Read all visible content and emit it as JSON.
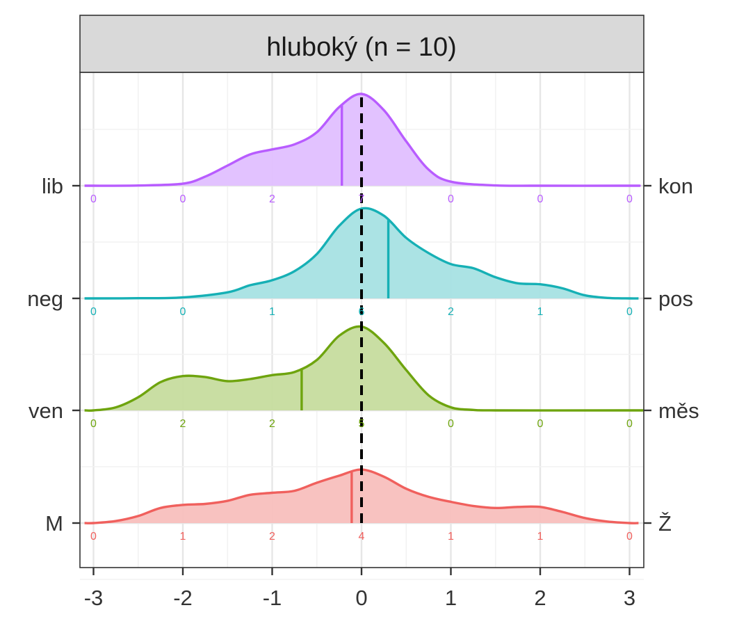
{
  "chart_data": {
    "type": "ridgeline",
    "title": "hluboký (n = 10)",
    "xlim": [
      -3,
      3
    ],
    "x_ticks": [
      "-3",
      "-2",
      "-1",
      "0",
      "1",
      "2",
      "3"
    ],
    "grid": true,
    "reference_line_x": 0,
    "series": [
      {
        "left_label": "lib",
        "right_label": "kon",
        "color": "#B85CFF",
        "fill": "#E0BFFF",
        "mean": -0.22,
        "counts": [
          0,
          0,
          2,
          7,
          0,
          0,
          0
        ],
        "density": [
          [
            -3,
            0
          ],
          [
            -2.5,
            0.002
          ],
          [
            -2,
            0.02
          ],
          [
            -1.75,
            0.09
          ],
          [
            -1.5,
            0.2
          ],
          [
            -1.25,
            0.31
          ],
          [
            -1,
            0.36
          ],
          [
            -0.75,
            0.41
          ],
          [
            -0.5,
            0.53
          ],
          [
            -0.25,
            0.78
          ],
          [
            0,
            0.91
          ],
          [
            0.25,
            0.75
          ],
          [
            0.5,
            0.44
          ],
          [
            0.75,
            0.16
          ],
          [
            1,
            0.04
          ],
          [
            1.5,
            0.003
          ],
          [
            2,
            0
          ],
          [
            3,
            0
          ]
        ]
      },
      {
        "left_label": "neg",
        "right_label": "pos",
        "color": "#16B0B5",
        "fill": "#A6E2E3",
        "mean": 0.3,
        "counts": [
          0,
          0,
          1,
          6,
          2,
          1,
          0
        ],
        "density": [
          [
            -3,
            0
          ],
          [
            -2.5,
            0.002
          ],
          [
            -2,
            0.01
          ],
          [
            -1.5,
            0.06
          ],
          [
            -1.25,
            0.13
          ],
          [
            -1,
            0.18
          ],
          [
            -0.75,
            0.27
          ],
          [
            -0.5,
            0.44
          ],
          [
            -0.25,
            0.72
          ],
          [
            0,
            0.89
          ],
          [
            0.25,
            0.82
          ],
          [
            0.5,
            0.6
          ],
          [
            0.75,
            0.45
          ],
          [
            1,
            0.34
          ],
          [
            1.25,
            0.3
          ],
          [
            1.5,
            0.21
          ],
          [
            1.75,
            0.15
          ],
          [
            2,
            0.14
          ],
          [
            2.25,
            0.1
          ],
          [
            2.5,
            0.03
          ],
          [
            2.75,
            0.005
          ],
          [
            3,
            0
          ]
        ]
      },
      {
        "left_label": "ven",
        "right_label": "měs",
        "color": "#6EA40E",
        "fill": "#C6DC9E",
        "mean": -0.67,
        "counts": [
          0,
          2,
          2,
          5,
          0,
          0,
          0
        ],
        "density": [
          [
            -3,
            0
          ],
          [
            -2.75,
            0.03
          ],
          [
            -2.5,
            0.13
          ],
          [
            -2.25,
            0.28
          ],
          [
            -2,
            0.34
          ],
          [
            -1.75,
            0.33
          ],
          [
            -1.5,
            0.29
          ],
          [
            -1.25,
            0.31
          ],
          [
            -1,
            0.35
          ],
          [
            -0.75,
            0.38
          ],
          [
            -0.5,
            0.5
          ],
          [
            -0.25,
            0.74
          ],
          [
            0,
            0.83
          ],
          [
            0.25,
            0.67
          ],
          [
            0.5,
            0.4
          ],
          [
            0.75,
            0.15
          ],
          [
            1,
            0.03
          ],
          [
            1.25,
            0.005
          ],
          [
            1.5,
            0
          ],
          [
            3,
            0
          ]
        ]
      },
      {
        "left_label": "M",
        "right_label": "Ž",
        "color": "#F0605D",
        "fill": "#F8BFBD",
        "mean": -0.11,
        "counts": [
          0,
          1,
          2,
          4,
          1,
          1,
          0
        ],
        "density": [
          [
            -3,
            0
          ],
          [
            -2.75,
            0.02
          ],
          [
            -2.5,
            0.07
          ],
          [
            -2.25,
            0.15
          ],
          [
            -2,
            0.18
          ],
          [
            -1.75,
            0.19
          ],
          [
            -1.5,
            0.22
          ],
          [
            -1.25,
            0.28
          ],
          [
            -1,
            0.3
          ],
          [
            -0.75,
            0.32
          ],
          [
            -0.5,
            0.4
          ],
          [
            -0.25,
            0.47
          ],
          [
            0,
            0.53
          ],
          [
            0.25,
            0.46
          ],
          [
            0.5,
            0.34
          ],
          [
            0.75,
            0.26
          ],
          [
            1,
            0.21
          ],
          [
            1.25,
            0.17
          ],
          [
            1.5,
            0.15
          ],
          [
            1.75,
            0.16
          ],
          [
            2,
            0.16
          ],
          [
            2.25,
            0.11
          ],
          [
            2.5,
            0.05
          ],
          [
            2.75,
            0.015
          ],
          [
            3,
            0
          ]
        ]
      }
    ]
  }
}
